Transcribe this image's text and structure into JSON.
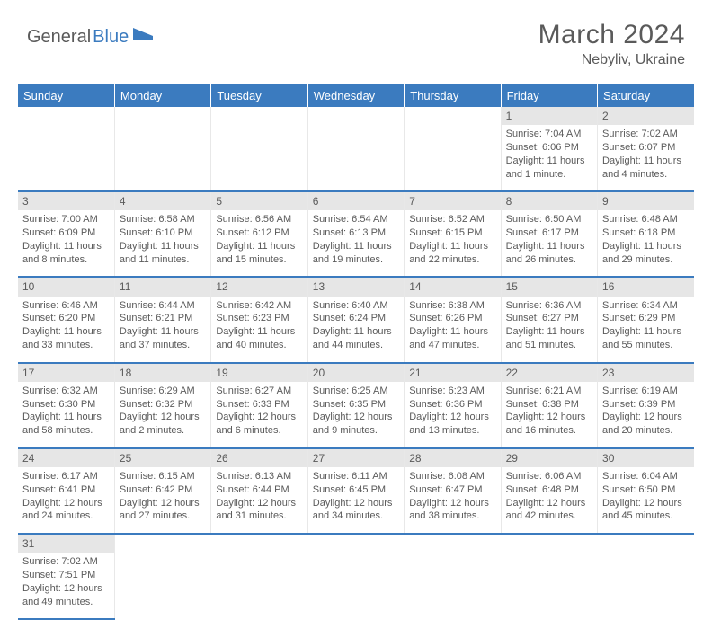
{
  "brand": {
    "part1": "General",
    "part2": "Blue"
  },
  "title": "March 2024",
  "location": "Nebyliv, Ukraine",
  "colors": {
    "header_bg": "#3b7bbf",
    "header_text": "#ffffff",
    "daynum_bg": "#e6e6e6",
    "border": "#3b7bbf",
    "text": "#5a5a5a",
    "brand_blue": "#3b7bbf"
  },
  "day_headers": [
    "Sunday",
    "Monday",
    "Tuesday",
    "Wednesday",
    "Thursday",
    "Friday",
    "Saturday"
  ],
  "weeks": [
    {
      "nums": [
        "",
        "",
        "",
        "",
        "",
        "1",
        "2"
      ],
      "cells": [
        "",
        "",
        "",
        "",
        "",
        "Sunrise: 7:04 AM\nSunset: 6:06 PM\nDaylight: 11 hours and 1 minute.",
        "Sunrise: 7:02 AM\nSunset: 6:07 PM\nDaylight: 11 hours and 4 minutes."
      ]
    },
    {
      "nums": [
        "3",
        "4",
        "5",
        "6",
        "7",
        "8",
        "9"
      ],
      "cells": [
        "Sunrise: 7:00 AM\nSunset: 6:09 PM\nDaylight: 11 hours and 8 minutes.",
        "Sunrise: 6:58 AM\nSunset: 6:10 PM\nDaylight: 11 hours and 11 minutes.",
        "Sunrise: 6:56 AM\nSunset: 6:12 PM\nDaylight: 11 hours and 15 minutes.",
        "Sunrise: 6:54 AM\nSunset: 6:13 PM\nDaylight: 11 hours and 19 minutes.",
        "Sunrise: 6:52 AM\nSunset: 6:15 PM\nDaylight: 11 hours and 22 minutes.",
        "Sunrise: 6:50 AM\nSunset: 6:17 PM\nDaylight: 11 hours and 26 minutes.",
        "Sunrise: 6:48 AM\nSunset: 6:18 PM\nDaylight: 11 hours and 29 minutes."
      ]
    },
    {
      "nums": [
        "10",
        "11",
        "12",
        "13",
        "14",
        "15",
        "16"
      ],
      "cells": [
        "Sunrise: 6:46 AM\nSunset: 6:20 PM\nDaylight: 11 hours and 33 minutes.",
        "Sunrise: 6:44 AM\nSunset: 6:21 PM\nDaylight: 11 hours and 37 minutes.",
        "Sunrise: 6:42 AM\nSunset: 6:23 PM\nDaylight: 11 hours and 40 minutes.",
        "Sunrise: 6:40 AM\nSunset: 6:24 PM\nDaylight: 11 hours and 44 minutes.",
        "Sunrise: 6:38 AM\nSunset: 6:26 PM\nDaylight: 11 hours and 47 minutes.",
        "Sunrise: 6:36 AM\nSunset: 6:27 PM\nDaylight: 11 hours and 51 minutes.",
        "Sunrise: 6:34 AM\nSunset: 6:29 PM\nDaylight: 11 hours and 55 minutes."
      ]
    },
    {
      "nums": [
        "17",
        "18",
        "19",
        "20",
        "21",
        "22",
        "23"
      ],
      "cells": [
        "Sunrise: 6:32 AM\nSunset: 6:30 PM\nDaylight: 11 hours and 58 minutes.",
        "Sunrise: 6:29 AM\nSunset: 6:32 PM\nDaylight: 12 hours and 2 minutes.",
        "Sunrise: 6:27 AM\nSunset: 6:33 PM\nDaylight: 12 hours and 6 minutes.",
        "Sunrise: 6:25 AM\nSunset: 6:35 PM\nDaylight: 12 hours and 9 minutes.",
        "Sunrise: 6:23 AM\nSunset: 6:36 PM\nDaylight: 12 hours and 13 minutes.",
        "Sunrise: 6:21 AM\nSunset: 6:38 PM\nDaylight: 12 hours and 16 minutes.",
        "Sunrise: 6:19 AM\nSunset: 6:39 PM\nDaylight: 12 hours and 20 minutes."
      ]
    },
    {
      "nums": [
        "24",
        "25",
        "26",
        "27",
        "28",
        "29",
        "30"
      ],
      "cells": [
        "Sunrise: 6:17 AM\nSunset: 6:41 PM\nDaylight: 12 hours and 24 minutes.",
        "Sunrise: 6:15 AM\nSunset: 6:42 PM\nDaylight: 12 hours and 27 minutes.",
        "Sunrise: 6:13 AM\nSunset: 6:44 PM\nDaylight: 12 hours and 31 minutes.",
        "Sunrise: 6:11 AM\nSunset: 6:45 PM\nDaylight: 12 hours and 34 minutes.",
        "Sunrise: 6:08 AM\nSunset: 6:47 PM\nDaylight: 12 hours and 38 minutes.",
        "Sunrise: 6:06 AM\nSunset: 6:48 PM\nDaylight: 12 hours and 42 minutes.",
        "Sunrise: 6:04 AM\nSunset: 6:50 PM\nDaylight: 12 hours and 45 minutes."
      ]
    },
    {
      "nums": [
        "31",
        "",
        "",
        "",
        "",
        "",
        ""
      ],
      "cells": [
        "Sunrise: 7:02 AM\nSunset: 7:51 PM\nDaylight: 12 hours and 49 minutes.",
        "",
        "",
        "",
        "",
        "",
        ""
      ]
    }
  ]
}
